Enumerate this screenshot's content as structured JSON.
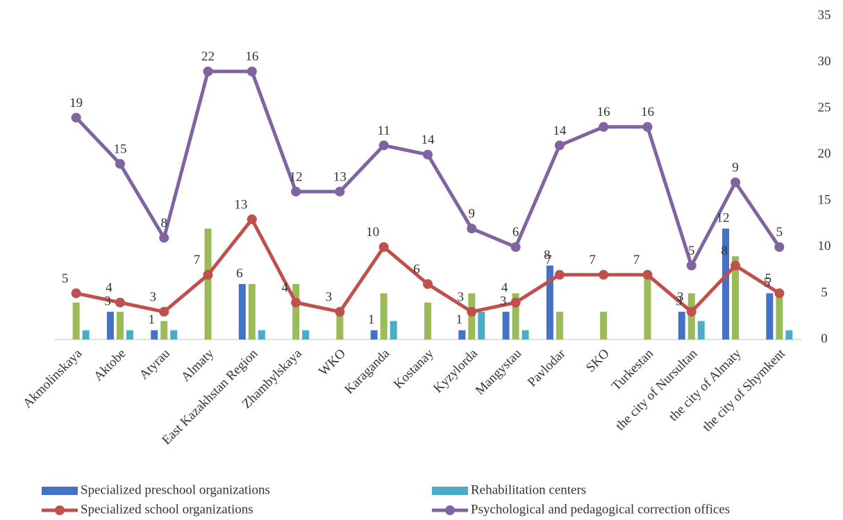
{
  "chart_data": {
    "type": "combo",
    "categories": [
      "Akmolinskaya",
      "Aktobe",
      "Atyrau",
      "Almaty",
      "East Kazakhstan Region",
      "Zhambylskaya",
      "WKO",
      "Karaganda",
      "Kostanay",
      "Kyzylorda",
      "Mangystau",
      "Pavlodar",
      "SKO",
      "Turkestan",
      "the city of Nursultan",
      "the city of Almaty",
      "the city of Shymkent"
    ],
    "series": [
      {
        "name": "Specialized preschool organizations",
        "type": "bar",
        "color": "#4472c4",
        "labels": true,
        "values": [
          null,
          3,
          1,
          null,
          6,
          null,
          null,
          1,
          null,
          1,
          3,
          8,
          null,
          null,
          3,
          12,
          5
        ]
      },
      {
        "type": "bar",
        "color": "#9bbb59",
        "labels": false,
        "values": [
          4,
          3,
          2,
          12,
          6,
          6,
          3,
          5,
          4,
          5,
          5,
          3,
          3,
          7,
          5,
          9,
          5
        ]
      },
      {
        "name": "Rehabilitation centers",
        "type": "bar",
        "color": "#4bacc6",
        "labels": false,
        "values": [
          1,
          1,
          1,
          null,
          1,
          1,
          null,
          2,
          null,
          3,
          1,
          null,
          null,
          null,
          2,
          null,
          1
        ]
      },
      {
        "name": "Specialized school organizations",
        "type": "line",
        "color": "#c0504d",
        "labels": true,
        "values": [
          5,
          4,
          3,
          7,
          13,
          4,
          3,
          10,
          6,
          3,
          4,
          7,
          7,
          7,
          3,
          8,
          5
        ]
      },
      {
        "name": "Psychological and pedagogical correction offices",
        "type": "line",
        "color": "#8064a2",
        "labels": true,
        "stacked": true,
        "values": [
          19,
          15,
          8,
          22,
          16,
          12,
          13,
          11,
          14,
          9,
          6,
          14,
          16,
          16,
          5,
          9,
          5
        ]
      }
    ],
    "ylim": [
      0,
      35
    ],
    "yticks": [
      0,
      5,
      10,
      15,
      20,
      25,
      30,
      35
    ],
    "y_axis_side": "right"
  }
}
